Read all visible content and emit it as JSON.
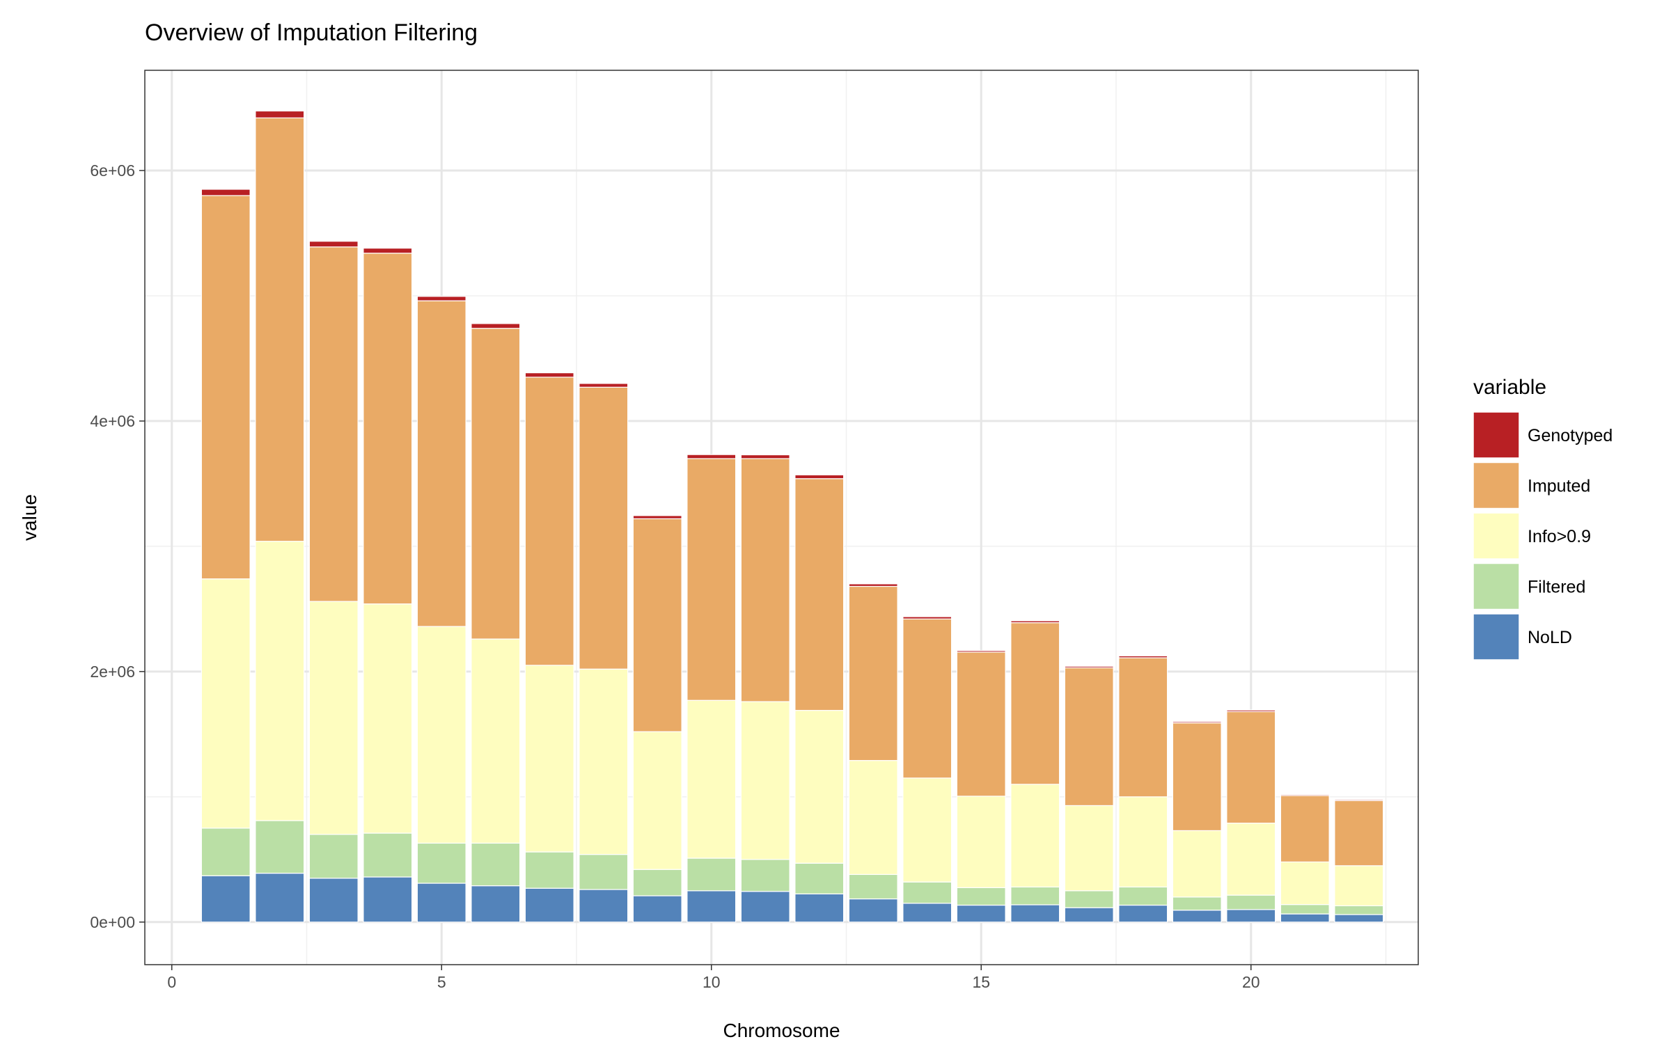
{
  "chart_data": {
    "type": "bar",
    "stacked": true,
    "title": "Overview of Imputation Filtering",
    "xlabel": "Chromosome",
    "ylabel": "value",
    "xlim": [
      -0.5,
      23.1
    ],
    "ylim": [
      -340000,
      6800000
    ],
    "x_ticks": [
      0,
      5,
      10,
      15,
      20
    ],
    "x_tick_labels": [
      "0",
      "5",
      "10",
      "15",
      "20"
    ],
    "y_ticks": [
      0,
      2000000,
      4000000,
      6000000
    ],
    "y_tick_labels": [
      "0e+00",
      "2e+06",
      "4e+06",
      "6e+06"
    ],
    "x_minor_ticks": [
      2.5,
      7.5,
      12.5,
      17.5,
      22.5
    ],
    "y_minor_ticks": [
      1000000,
      3000000,
      5000000
    ],
    "grid": true,
    "legend_position": "right",
    "legend_title": "variable",
    "categories": [
      1,
      2,
      3,
      4,
      5,
      6,
      7,
      8,
      9,
      10,
      11,
      12,
      13,
      14,
      15,
      16,
      17,
      18,
      19,
      20,
      21,
      22
    ],
    "series": [
      {
        "name": "NoLD",
        "color": "#5383ba",
        "values": [
          370000,
          390000,
          350000,
          360000,
          310000,
          290000,
          270000,
          260000,
          210000,
          250000,
          245000,
          225000,
          185000,
          150000,
          135000,
          138000,
          115000,
          135000,
          95000,
          100000,
          65000,
          60000
        ]
      },
      {
        "name": "Filtered",
        "color": "#badfa5",
        "values": [
          380000,
          420000,
          350000,
          350000,
          320000,
          340000,
          290000,
          280000,
          210000,
          260000,
          255000,
          245000,
          195000,
          170000,
          140000,
          142000,
          135000,
          145000,
          105000,
          115000,
          75000,
          70000
        ]
      },
      {
        "name": "Info>0.9",
        "color": "#fefdbf",
        "values": [
          1990000,
          2230000,
          1860000,
          1830000,
          1730000,
          1630000,
          1490000,
          1480000,
          1100000,
          1260000,
          1260000,
          1220000,
          910000,
          830000,
          730000,
          820000,
          680000,
          720000,
          530000,
          575000,
          340000,
          320000
        ]
      },
      {
        "name": "Imputed",
        "color": "#e9aa66",
        "values": [
          3060000,
          3380000,
          2830000,
          2800000,
          2600000,
          2480000,
          2300000,
          2250000,
          1700000,
          1930000,
          1940000,
          1850000,
          1390000,
          1270000,
          1150000,
          1290000,
          1100000,
          1110000,
          860000,
          890000,
          530000,
          520000
        ]
      },
      {
        "name": "Genotyped",
        "color": "#b82024",
        "values": [
          50000,
          55000,
          45000,
          40000,
          35000,
          38000,
          35000,
          30000,
          25000,
          32000,
          30000,
          30000,
          20000,
          18000,
          12000,
          15000,
          12000,
          15000,
          10000,
          12000,
          8000,
          8000
        ]
      }
    ],
    "legend_order": [
      "Genotyped",
      "Imputed",
      "Info>0.9",
      "Filtered",
      "NoLD"
    ]
  }
}
